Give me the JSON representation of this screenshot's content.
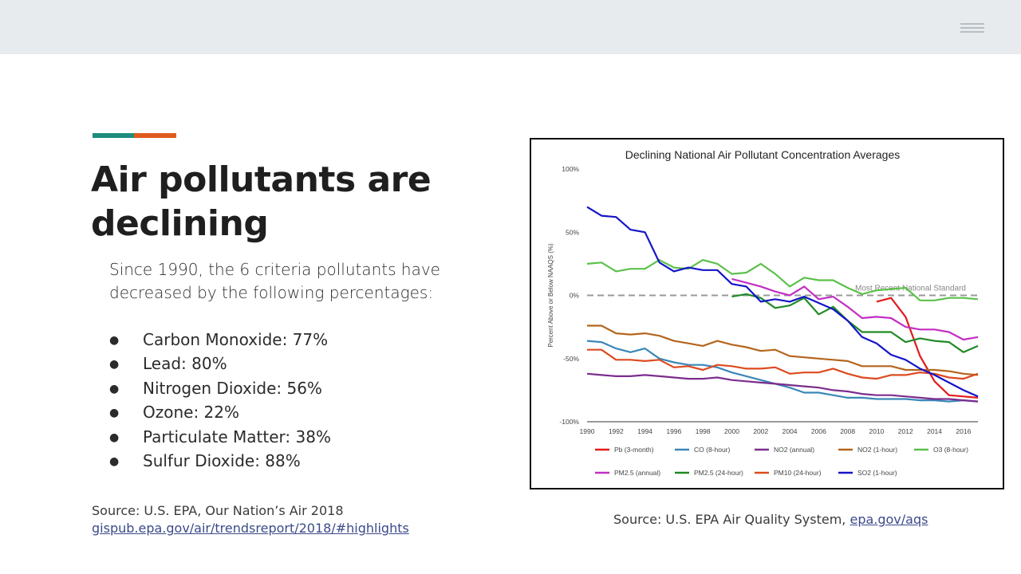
{
  "slide": {
    "title": "Air pollutants are declining",
    "intro": "Since 1990, the 6 criteria pollutants have decreased by the following percentages:",
    "bullets": [
      "Carbon Monoxide: 77%",
      "Lead: 80%",
      "Nitrogen Dioxide: 56%",
      "Ozone: 22%",
      "Particulate Matter: 38%",
      "Sulfur Dioxide: 88%"
    ],
    "bullet_glyph": "●",
    "source_left_text": "Source: U.S. EPA, Our Nation’s Air 2018",
    "source_left_link": "gispub.epa.gov/air/trendsreport/2018/#highlights",
    "source_right_text": "Source: U.S. EPA Air Quality System, ",
    "source_right_link": "epa.gov/aqs"
  },
  "colors": {
    "accent_teal": "#1e8c7e",
    "accent_orange": "#e05a1c",
    "topbar": "#e8ebee"
  },
  "chart_data": {
    "type": "line",
    "title": "Declining National Air Pollutant Concentration Averages",
    "xlabel": "",
    "ylabel": "Percent Above or Below NAAQS (%)",
    "xlim": [
      1990,
      2017
    ],
    "ylim": [
      -100,
      100
    ],
    "x_ticks": [
      1990,
      1992,
      1994,
      1996,
      1998,
      2000,
      2002,
      2004,
      2006,
      2008,
      2010,
      2012,
      2014,
      2016
    ],
    "y_ticks": [
      100,
      50,
      0,
      -50,
      -100
    ],
    "y_tick_labels": [
      "100%",
      "50%",
      "0%",
      "-50%",
      "-100%"
    ],
    "reference_line": {
      "y": 0,
      "label": "Most Recent National Standard",
      "color": "#999999"
    },
    "legend_position": "bottom",
    "series": [
      {
        "name": "Pb (3-month)",
        "color": "#e41a1c",
        "x_start": 2010,
        "values": [
          -5,
          -2,
          -17,
          -48,
          -68,
          -79,
          -80,
          -81
        ]
      },
      {
        "name": "CO (8-hour)",
        "color": "#3a87b8",
        "x_start": 1990,
        "values": [
          -36,
          -37,
          -42,
          -45,
          -42,
          -50,
          -53,
          -55,
          -55,
          -57,
          -61,
          -64,
          -67,
          -70,
          -73,
          -77,
          -77,
          -79,
          -81,
          -81,
          -82,
          -82,
          -82,
          -83,
          -83,
          -84,
          -83,
          -84
        ]
      },
      {
        "name": "NO2 (annual)",
        "color": "#7b2d8e",
        "x_start": 1990,
        "values": [
          -62,
          -63,
          -64,
          -64,
          -63,
          -64,
          -65,
          -66,
          -66,
          -65,
          -67,
          -68,
          -69,
          -70,
          -71,
          -72,
          -73,
          -75,
          -76,
          -78,
          -79,
          -79,
          -80,
          -81,
          -82,
          -82,
          -83,
          -84
        ]
      },
      {
        "name": "NO2 (1-hour)",
        "color": "#b5651d",
        "x_start": 1990,
        "values": [
          -24,
          -24,
          -30,
          -31,
          -30,
          -32,
          -36,
          -38,
          -40,
          -36,
          -39,
          -41,
          -44,
          -43,
          -48,
          -49,
          -50,
          -51,
          -52,
          -56,
          -56,
          -56,
          -59,
          -59,
          -59,
          -60,
          -62,
          -63
        ]
      },
      {
        "name": "O3 (8-hour)",
        "color": "#5cc14a",
        "x_start": 1990,
        "values": [
          25,
          26,
          19,
          21,
          21,
          28,
          22,
          21,
          28,
          25,
          17,
          18,
          25,
          17,
          7,
          14,
          12,
          12,
          6,
          1,
          4,
          5,
          6,
          -4,
          -4,
          -2,
          -2,
          -3
        ]
      },
      {
        "name": "PM2.5 (annual)",
        "color": "#c22fc4",
        "x_start": 2000,
        "values": [
          13,
          10,
          7,
          3,
          0,
          7,
          -3,
          -1,
          -9,
          -18,
          -17,
          -18,
          -25,
          -27,
          -27,
          -29,
          -35,
          -33
        ]
      },
      {
        "name": "PM2.5 (24-hour)",
        "color": "#1f8a25",
        "x_start": 2000,
        "values": [
          -1,
          1,
          -2,
          -10,
          -8,
          -2,
          -15,
          -9,
          -20,
          -29,
          -29,
          -29,
          -37,
          -34,
          -36,
          -37,
          -45,
          -40
        ]
      },
      {
        "name": "PM10 (24-hour)",
        "color": "#dd4a1f",
        "x_start": 1990,
        "values": [
          -43,
          -43,
          -51,
          -51,
          -52,
          -51,
          -57,
          -56,
          -59,
          -55,
          -56,
          -58,
          -58,
          -57,
          -62,
          -61,
          -61,
          -58,
          -62,
          -65,
          -66,
          -63,
          -63,
          -61,
          -62,
          -65,
          -66,
          -62
        ]
      },
      {
        "name": "SO2 (1-hour)",
        "color": "#1414c8",
        "x_start": 1990,
        "values": [
          70,
          63,
          62,
          52,
          50,
          26,
          19,
          22,
          20,
          20,
          9,
          7,
          -5,
          -3,
          -5,
          -1,
          -6,
          -11,
          -20,
          -33,
          -38,
          -47,
          -51,
          -58,
          -63,
          -69,
          -75,
          -80
        ]
      }
    ]
  }
}
